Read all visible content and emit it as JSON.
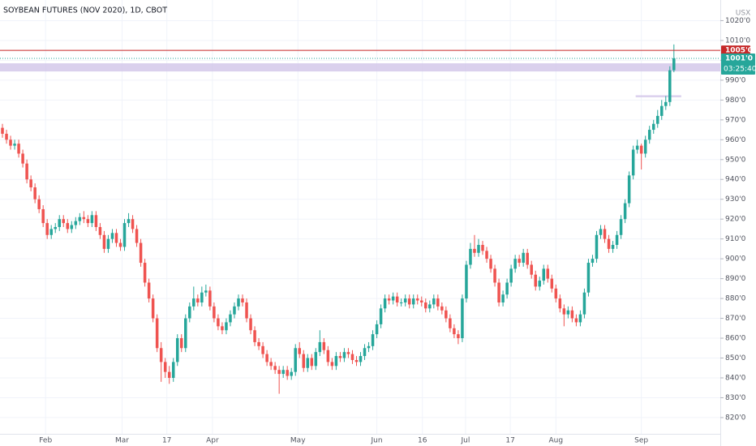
{
  "chart_data": {
    "type": "candlestick",
    "title": "SOYBEAN FUTURES (NOV 2020), 1D, CBOT",
    "currency": "USX",
    "up_color": "#26a69a",
    "down_color": "#ef5350",
    "grid": true,
    "ylim": [
      811.8,
      1030.4
    ],
    "yticks": [
      {
        "value": 820,
        "label": "820'0"
      },
      {
        "value": 830,
        "label": "830'0"
      },
      {
        "value": 840,
        "label": "840'0"
      },
      {
        "value": 850,
        "label": "850'0"
      },
      {
        "value": 860,
        "label": "860'0"
      },
      {
        "value": 870,
        "label": "870'0"
      },
      {
        "value": 880,
        "label": "880'0"
      },
      {
        "value": 890,
        "label": "890'0"
      },
      {
        "value": 900,
        "label": "900'0"
      },
      {
        "value": 910,
        "label": "910'0"
      },
      {
        "value": 920,
        "label": "920'0"
      },
      {
        "value": 930,
        "label": "930'0"
      },
      {
        "value": 940,
        "label": "940'0"
      },
      {
        "value": 950,
        "label": "950'0"
      },
      {
        "value": 960,
        "label": "960'0"
      },
      {
        "value": 970,
        "label": "970'0"
      },
      {
        "value": 980,
        "label": "980'0"
      },
      {
        "value": 990,
        "label": "990'0"
      },
      {
        "value": 1000,
        "label": "1000'0"
      },
      {
        "value": 1010,
        "label": "1010'0"
      },
      {
        "value": 1020,
        "label": "1020'0"
      }
    ],
    "xlim": [
      -0.6,
      176.4
    ],
    "xticks": [
      {
        "value": 10.6,
        "label": "Feb"
      },
      {
        "value": 29.4,
        "label": "Mar"
      },
      {
        "value": 40.4,
        "label": "17"
      },
      {
        "value": 51.6,
        "label": "Apr"
      },
      {
        "value": 72.6,
        "label": "May"
      },
      {
        "value": 92,
        "label": "Jun"
      },
      {
        "value": 103.2,
        "label": "16"
      },
      {
        "value": 113.8,
        "label": "Jul"
      },
      {
        "value": 124.8,
        "label": "17"
      },
      {
        "value": 136,
        "label": "Aug"
      },
      {
        "value": 157,
        "label": "Sep"
      }
    ],
    "open": [
      966,
      963,
      960,
      957,
      958,
      953,
      948,
      940,
      936,
      930,
      925,
      918,
      912,
      915,
      916,
      920,
      918,
      915,
      917,
      919,
      921,
      920,
      918,
      922,
      916,
      912,
      905,
      910,
      913,
      908,
      906,
      918,
      920,
      915,
      908,
      898,
      888,
      880,
      870,
      855,
      848,
      843,
      840,
      848,
      860,
      855,
      870,
      876,
      880,
      878,
      883,
      884,
      876,
      870,
      866,
      864,
      868,
      872,
      876,
      880,
      878,
      870,
      864,
      858,
      856,
      852,
      848,
      846,
      844,
      842,
      844,
      841,
      843,
      855,
      852,
      845,
      850,
      846,
      853,
      858,
      854,
      848,
      846,
      851,
      850,
      853,
      852,
      849,
      848,
      851,
      855,
      856,
      862,
      867,
      875,
      880,
      879,
      881,
      878,
      878,
      880,
      877,
      880,
      879,
      878,
      875,
      877,
      880,
      876,
      874,
      870,
      865,
      862,
      860,
      880,
      897,
      905,
      903,
      907,
      904,
      900,
      895,
      888,
      878,
      882,
      888,
      895,
      900,
      898,
      903,
      897,
      892,
      886,
      889,
      895,
      890,
      885,
      880,
      875,
      872,
      874,
      870,
      868,
      872,
      883,
      898,
      900,
      912,
      915,
      910,
      905,
      907,
      912,
      920,
      928,
      942,
      955,
      957,
      953,
      960,
      965,
      968,
      972,
      977,
      979,
      995
    ],
    "high": [
      968,
      965,
      962,
      960,
      960,
      955,
      950,
      942,
      938,
      932,
      927,
      920,
      917,
      918,
      922,
      922,
      920,
      919,
      921,
      923,
      924,
      922,
      924,
      924,
      918,
      914,
      912,
      915,
      915,
      910,
      920,
      923,
      922,
      917,
      910,
      900,
      890,
      882,
      872,
      858,
      850,
      846,
      850,
      862,
      862,
      872,
      878,
      886,
      882,
      886,
      887,
      886,
      878,
      872,
      868,
      870,
      874,
      878,
      882,
      882,
      880,
      872,
      866,
      860,
      858,
      854,
      850,
      848,
      846,
      846,
      846,
      845,
      857,
      858,
      854,
      852,
      852,
      855,
      864,
      860,
      856,
      850,
      853,
      853,
      855,
      855,
      854,
      851,
      853,
      857,
      858,
      864,
      869,
      877,
      882,
      882,
      883,
      883,
      880,
      882,
      882,
      882,
      882,
      881,
      880,
      879,
      882,
      882,
      878,
      876,
      872,
      867,
      864,
      882,
      899,
      908,
      912,
      910,
      909,
      906,
      902,
      897,
      890,
      884,
      890,
      897,
      902,
      902,
      905,
      905,
      899,
      894,
      891,
      897,
      897,
      892,
      887,
      882,
      877,
      876,
      876,
      872,
      874,
      885,
      900,
      902,
      914,
      917,
      917,
      912,
      909,
      914,
      922,
      930,
      944,
      957,
      960,
      958,
      962,
      967,
      970,
      975,
      980,
      982,
      997,
      1008
    ],
    "low": [
      961,
      958,
      955,
      955,
      951,
      946,
      938,
      934,
      928,
      923,
      916,
      910,
      910,
      913,
      914,
      916,
      913,
      913,
      915,
      917,
      918,
      916,
      916,
      914,
      910,
      903,
      903,
      908,
      906,
      904,
      904,
      916,
      913,
      906,
      896,
      886,
      878,
      868,
      853,
      838,
      840,
      837,
      838,
      846,
      853,
      853,
      868,
      874,
      876,
      876,
      881,
      874,
      868,
      864,
      862,
      862,
      866,
      870,
      874,
      876,
      868,
      862,
      856,
      854,
      850,
      846,
      844,
      842,
      832,
      840,
      839,
      839,
      841,
      850,
      843,
      843,
      844,
      844,
      851,
      852,
      846,
      844,
      844,
      848,
      848,
      850,
      847,
      846,
      846,
      849,
      853,
      854,
      860,
      865,
      873,
      877,
      877,
      876,
      876,
      876,
      875,
      875,
      877,
      876,
      873,
      873,
      875,
      874,
      872,
      868,
      863,
      860,
      857,
      858,
      878,
      895,
      901,
      901,
      902,
      898,
      893,
      886,
      876,
      876,
      880,
      886,
      893,
      896,
      896,
      895,
      890,
      884,
      884,
      887,
      888,
      883,
      878,
      873,
      866,
      870,
      868,
      866,
      866,
      870,
      881,
      896,
      898,
      910,
      908,
      903,
      903,
      905,
      910,
      918,
      926,
      940,
      953,
      945,
      951,
      958,
      963,
      966,
      970,
      975,
      977,
      994
    ],
    "close": [
      963,
      960,
      957,
      958,
      953,
      948,
      940,
      936,
      930,
      925,
      918,
      912,
      915,
      916,
      920,
      918,
      915,
      917,
      919,
      921,
      920,
      918,
      922,
      916,
      912,
      905,
      910,
      913,
      908,
      906,
      918,
      920,
      915,
      908,
      898,
      888,
      880,
      870,
      855,
      848,
      843,
      840,
      848,
      860,
      855,
      870,
      876,
      880,
      878,
      883,
      884,
      876,
      870,
      866,
      864,
      868,
      872,
      876,
      880,
      878,
      870,
      864,
      858,
      856,
      852,
      848,
      846,
      844,
      842,
      844,
      841,
      843,
      855,
      852,
      845,
      850,
      846,
      853,
      858,
      854,
      848,
      846,
      851,
      850,
      853,
      852,
      849,
      848,
      851,
      855,
      856,
      862,
      867,
      875,
      880,
      879,
      881,
      878,
      878,
      880,
      877,
      880,
      879,
      878,
      875,
      877,
      880,
      876,
      874,
      870,
      865,
      862,
      860,
      880,
      897,
      905,
      903,
      907,
      904,
      900,
      895,
      888,
      878,
      882,
      888,
      895,
      900,
      898,
      903,
      897,
      892,
      886,
      889,
      895,
      890,
      885,
      880,
      875,
      872,
      874,
      870,
      868,
      872,
      883,
      898,
      900,
      912,
      915,
      910,
      905,
      907,
      912,
      920,
      928,
      942,
      955,
      957,
      953,
      960,
      965,
      968,
      972,
      977,
      979,
      995,
      1001
    ],
    "price_line": {
      "value": 1005,
      "label": "1005'0",
      "color": "#c62828"
    },
    "last_price": {
      "value": 1001,
      "label": "1001'0",
      "countdown": "03:25:40",
      "color": "#26a69a"
    },
    "zones": [
      {
        "low": 994.4,
        "high": 998.5,
        "color": "#d1c4e9"
      },
      {
        "low": 981.4,
        "high": 982.4,
        "x_from": 155.6,
        "x_to": 166.8,
        "color": "#d1c4e9"
      }
    ]
  }
}
